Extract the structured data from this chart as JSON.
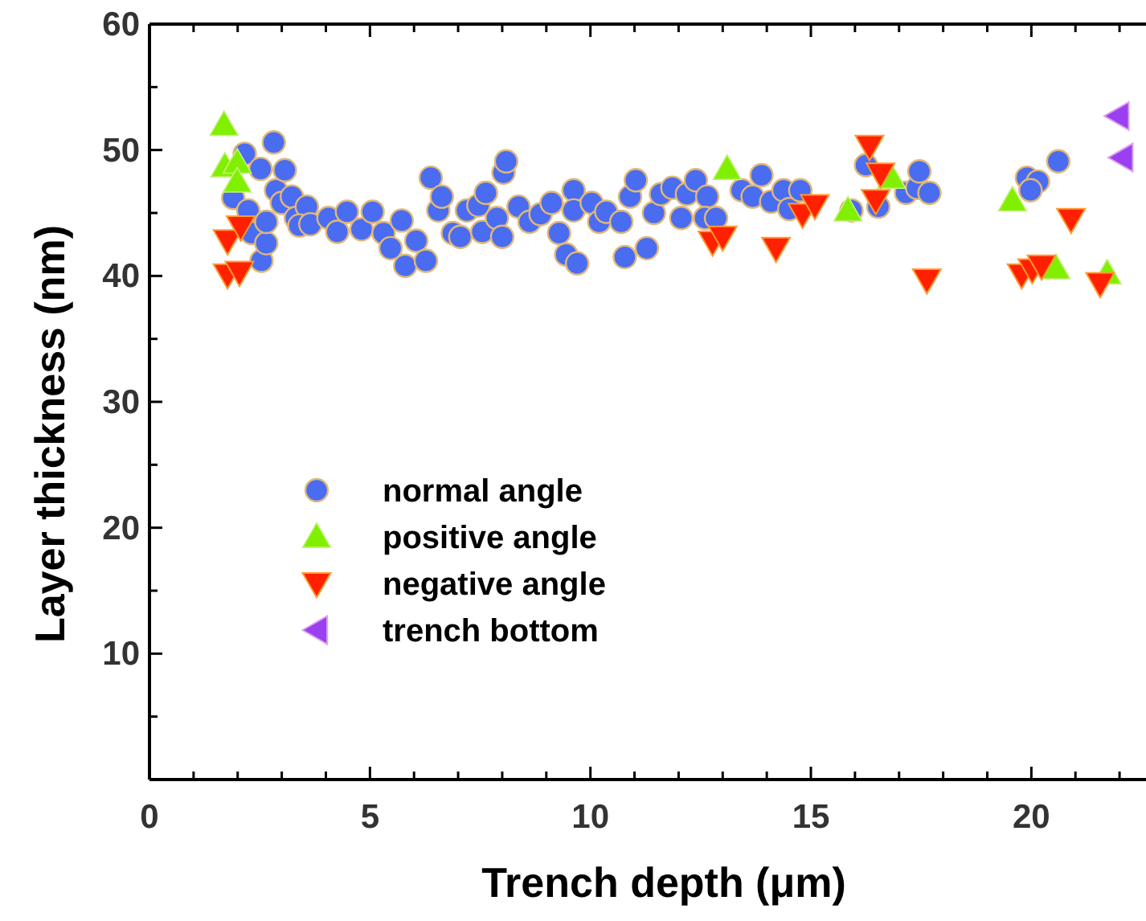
{
  "chart_data": {
    "type": "scatter",
    "xlabel": "Trench depth (μm)",
    "ylabel": "Layer thickness (nm)",
    "xlim": [
      0,
      22.6
    ],
    "ylim": [
      0,
      60
    ],
    "xticks": [
      0,
      {
        "value": 1,
        "label": null
      },
      {
        "value": 2,
        "label": null
      },
      {
        "value": 3,
        "label": null
      },
      {
        "value": 4,
        "label": null
      },
      5,
      {
        "value": 6,
        "label": null
      },
      {
        "value": 7,
        "label": null
      },
      {
        "value": 8,
        "label": null
      },
      {
        "value": 9,
        "label": null
      },
      10,
      {
        "value": 11,
        "label": null
      },
      {
        "value": 12,
        "label": null
      },
      {
        "value": 13,
        "label": null
      },
      {
        "value": 14,
        "label": null
      },
      15,
      {
        "value": 16,
        "label": null
      },
      {
        "value": 17,
        "label": null
      },
      {
        "value": 18,
        "label": null
      },
      {
        "value": 19,
        "label": null
      },
      20,
      {
        "value": 21,
        "label": null
      },
      {
        "value": 22,
        "label": null
      }
    ],
    "yticks": [
      {
        "value": 5,
        "label": null
      },
      10,
      {
        "value": 15,
        "label": null
      },
      20,
      {
        "value": 25,
        "label": null
      },
      30,
      {
        "value": 35,
        "label": null
      },
      40,
      {
        "value": 45,
        "label": null
      },
      50,
      {
        "value": 55,
        "label": null
      },
      60
    ],
    "grid": false,
    "legend": "left",
    "series": [
      {
        "name": "normal angle",
        "color": "#4a6cf0",
        "marker": "circle",
        "x": [
          1.9,
          2.16,
          2.82,
          2.52,
          2.24,
          2.32,
          2.54,
          2.65,
          2.65,
          2.87,
          3.07,
          3.0,
          3.23,
          3.32,
          3.57,
          3.4,
          3.65,
          4.06,
          4.26,
          4.48,
          4.81,
          5.06,
          5.31,
          5.47,
          5.72,
          5.8,
          6.05,
          6.27,
          6.38,
          6.55,
          6.63,
          6.88,
          7.05,
          7.2,
          7.46,
          7.55,
          7.63,
          7.88,
          8.0,
          8.03,
          8.09,
          8.37,
          8.62,
          8.87,
          9.12,
          9.29,
          9.45,
          9.62,
          9.62,
          9.7,
          10.03,
          10.2,
          10.36,
          10.7,
          10.78,
          10.9,
          11.03,
          11.28,
          11.44,
          11.6,
          11.86,
          12.06,
          12.19,
          12.39,
          12.65,
          12.6,
          12.85,
          13.43,
          13.68,
          13.88,
          14.1,
          14.38,
          14.51,
          14.76,
          15.92,
          16.25,
          16.53,
          17.16,
          17.41,
          17.46,
          17.69,
          19.9,
          20.15,
          20.61,
          19.98
        ],
        "values": [
          46.2,
          49.7,
          50.6,
          48.5,
          45.2,
          43.4,
          41.2,
          42.6,
          44.3,
          46.8,
          48.4,
          45.8,
          46.3,
          44.6,
          45.5,
          44.0,
          44.1,
          44.6,
          43.5,
          45.1,
          43.7,
          45.1,
          43.4,
          42.2,
          44.4,
          40.8,
          42.8,
          41.2,
          47.8,
          45.2,
          46.3,
          43.4,
          43.1,
          45.2,
          45.6,
          43.5,
          46.6,
          44.6,
          43.1,
          48.2,
          49.1,
          45.5,
          44.3,
          44.9,
          45.8,
          43.4,
          41.7,
          46.8,
          45.2,
          41.0,
          45.8,
          44.3,
          45.1,
          44.3,
          41.5,
          46.3,
          47.6,
          42.2,
          45.0,
          46.5,
          47.0,
          44.6,
          46.5,
          47.6,
          46.3,
          44.6,
          44.6,
          46.8,
          46.3,
          48.0,
          45.9,
          46.8,
          45.3,
          46.8,
          45.2,
          48.8,
          45.5,
          46.6,
          47.0,
          48.3,
          46.6,
          47.8,
          47.5,
          49.1,
          46.8
        ]
      },
      {
        "name": "positive angle",
        "color": "#80f000",
        "marker": "triangle",
        "x": [
          1.69,
          1.71,
          1.99,
          1.99,
          13.1,
          15.84,
          16.83,
          19.57,
          20.56,
          21.72
        ],
        "values": [
          52.0,
          48.7,
          49.0,
          47.5,
          48.5,
          45.2,
          47.8,
          46.0,
          40.6,
          40.2
        ]
      },
      {
        "name": "negative angle",
        "color": "#ff2000",
        "marker": "triangle-down",
        "x": [
          1.77,
          2.07,
          1.77,
          2.04,
          12.77,
          13.0,
          14.21,
          14.81,
          15.09,
          16.33,
          16.58,
          16.47,
          17.63,
          19.78,
          20.02,
          20.23,
          20.9,
          21.56
        ],
        "values": [
          42.8,
          43.9,
          40.1,
          40.3,
          42.7,
          43.1,
          42.2,
          44.9,
          45.6,
          50.3,
          48.1,
          46.0,
          39.7,
          40.1,
          40.5,
          40.8,
          44.5,
          39.4
        ]
      },
      {
        "name": "trench bottom",
        "color": "#9a40f0",
        "marker": "triangle-left",
        "x": [
          22.06,
          21.97
        ],
        "values": [
          49.4,
          52.7
        ]
      }
    ]
  }
}
